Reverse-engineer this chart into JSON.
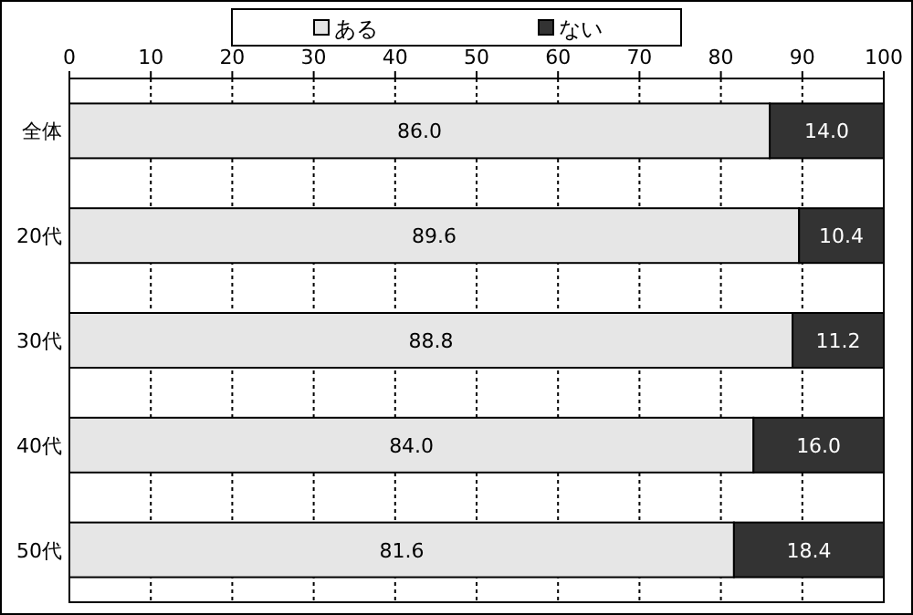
{
  "chart_data": {
    "type": "bar",
    "orientation": "horizontal",
    "stacked": true,
    "categories": [
      "全体",
      "20代",
      "30代",
      "40代",
      "50代"
    ],
    "series": [
      {
        "name": "ある",
        "color": "#e6e6e6",
        "values": [
          86.0,
          89.6,
          88.8,
          84.0,
          81.6
        ],
        "value_labels": [
          "86.0",
          "89.6",
          "88.8",
          "84.0",
          "81.6"
        ]
      },
      {
        "name": "ない",
        "color": "#333333",
        "values": [
          14.0,
          10.4,
          11.2,
          16.0,
          18.4
        ],
        "value_labels": [
          "14.0",
          "10.4",
          "11.2",
          "16.0",
          "18.4"
        ]
      }
    ],
    "xlim": [
      0,
      100
    ],
    "xticks": [
      0,
      10,
      20,
      30,
      40,
      50,
      60,
      70,
      80,
      90,
      100
    ],
    "grid": "x",
    "legend": "top"
  }
}
